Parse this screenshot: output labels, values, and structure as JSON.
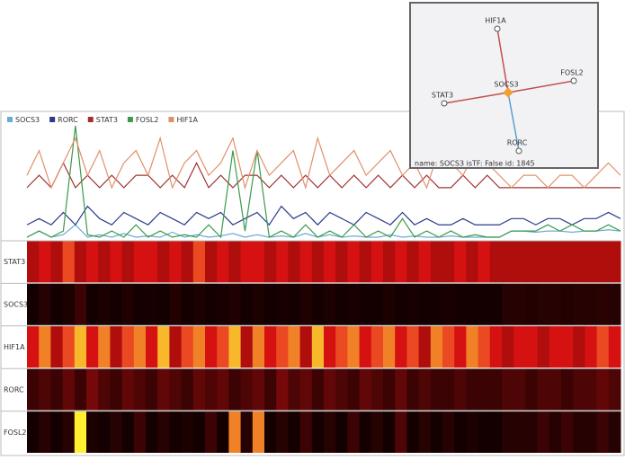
{
  "chart_data": {
    "type": "line",
    "series": [
      {
        "name": "SOCS3",
        "color": "#6aaad6",
        "values": [
          1,
          1.5,
          1,
          1.2,
          2,
          1,
          1.2,
          1,
          1.3,
          1,
          1.1,
          1,
          1.4,
          1,
          1.2,
          1,
          1.1,
          1.3,
          1,
          1.2,
          1,
          1.1,
          1,
          1.3,
          1,
          1.2,
          1,
          1.1,
          1,
          1,
          1.2,
          1,
          1.1,
          1,
          1,
          1.1,
          1,
          1,
          1,
          1,
          1.5,
          1.5,
          1.4,
          1.5,
          1.5,
          1.4,
          1.5,
          1.5,
          1.6,
          1.5
        ]
      },
      {
        "name": "RORC",
        "color": "#2a3a8a",
        "values": [
          2,
          2.5,
          2,
          3,
          2,
          3.5,
          2.5,
          2,
          3,
          2.5,
          2,
          3,
          2.5,
          2,
          3,
          2.5,
          3,
          2,
          2.5,
          3,
          2,
          3.5,
          2.5,
          3,
          2,
          3,
          2.5,
          2,
          3,
          2.5,
          2,
          3,
          2,
          2.5,
          2,
          2,
          2.5,
          2,
          2,
          2,
          2.5,
          2.5,
          2,
          2.5,
          2.5,
          2,
          2.5,
          2.5,
          3,
          2.5
        ]
      },
      {
        "name": "STAT3",
        "color": "#a03030",
        "values": [
          5,
          6,
          5,
          7,
          5,
          6,
          5,
          6,
          5,
          6,
          6,
          5,
          6,
          5,
          7,
          5,
          6,
          5,
          6,
          6,
          5,
          6,
          5,
          6,
          5,
          6,
          5,
          6,
          5,
          6,
          5,
          6,
          5,
          6,
          5,
          5,
          6,
          5,
          6,
          5,
          5,
          5,
          5,
          5,
          5,
          5,
          5,
          5,
          5,
          5
        ]
      },
      {
        "name": "FOSL2",
        "color": "#3a9a4a",
        "values": [
          1,
          1.5,
          1,
          1.5,
          10,
          1.2,
          1,
          1.5,
          1,
          2,
          1,
          1.5,
          1,
          1.2,
          1,
          2,
          1,
          8,
          1.5,
          8,
          1,
          1.5,
          1,
          2,
          1,
          1.5,
          1,
          2,
          1,
          1.5,
          1,
          2.5,
          1,
          1.5,
          1,
          1.5,
          1,
          1.2,
          1,
          1,
          1.5,
          1.5,
          1.5,
          2,
          1.5,
          2,
          1.5,
          1.5,
          2,
          1.5
        ]
      },
      {
        "name": "HIF1A",
        "color": "#e0906a",
        "values": [
          6,
          8,
          5,
          7,
          9,
          6,
          8,
          5,
          7,
          8,
          6,
          9,
          5,
          7,
          8,
          6,
          7,
          9,
          5,
          8,
          6,
          7,
          8,
          5,
          9,
          6,
          7,
          8,
          6,
          7,
          8,
          6,
          7,
          5,
          8,
          7,
          6,
          8,
          7,
          6,
          5,
          6,
          6,
          5,
          6,
          6,
          5,
          6,
          7,
          6
        ]
      }
    ],
    "heatmap_rows": [
      "STAT3",
      "SOCS3",
      "HIF1A",
      "RORC",
      "FOSL2"
    ]
  },
  "network": {
    "nodes": [
      "HIF1A",
      "FOSL2",
      "STAT3",
      "SOCS3",
      "RORC"
    ],
    "info": "name: SOCS3 isTF: False id: 1845"
  }
}
